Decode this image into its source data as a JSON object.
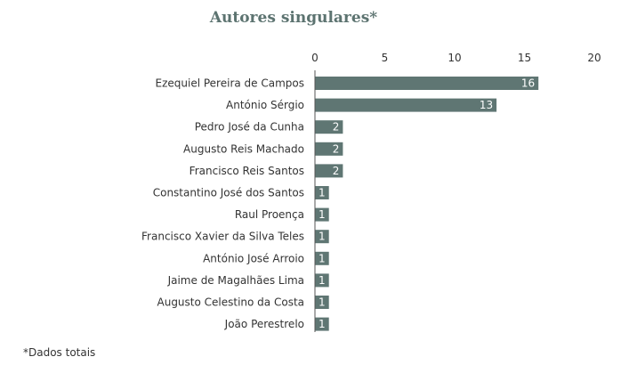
{
  "chart_data": {
    "type": "bar",
    "orientation": "horizontal",
    "title": "Autores singulares*",
    "categories": [
      "Ezequiel Pereira de Campos",
      "António Sérgio",
      "Pedro José da Cunha",
      "Augusto Reis Machado",
      "Francisco Reis Santos",
      "Constantino José dos Santos",
      "Raul Proença",
      "Francisco Xavier da Silva Teles",
      "António José Arroio",
      "Jaime de Magalhães Lima",
      "Augusto Celestino da Costa",
      "João Perestrelo"
    ],
    "values": [
      16,
      13,
      2,
      2,
      2,
      1,
      1,
      1,
      1,
      1,
      1,
      1
    ],
    "xlim": [
      0,
      20
    ],
    "ticks": [
      "0",
      "5",
      "10",
      "15",
      "20"
    ],
    "axis_position": "top",
    "grid": false,
    "data_labels": true,
    "bar_color": "#5f7673"
  },
  "footnote": "*Dados totais"
}
